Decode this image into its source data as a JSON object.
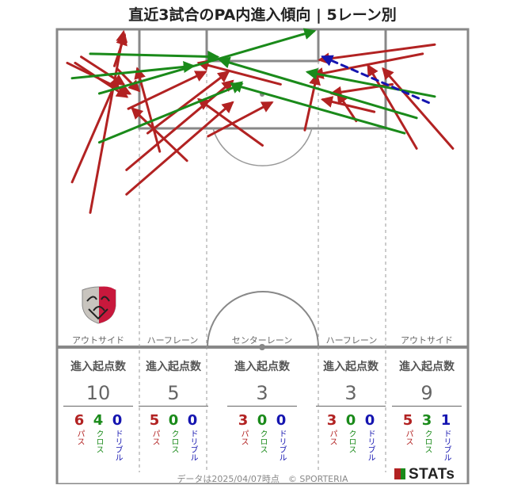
{
  "title": "直近3試合のPA内進入傾向 | 5レーン別",
  "footer": "データは2025/04/07時点　© SPORTERIA",
  "brand": "STATs",
  "colors": {
    "pass": "#b22222",
    "cross": "#1a8a1a",
    "dribble": "#1515b0",
    "line": "#888888"
  },
  "lanes": [
    {
      "name": "アウトサイド",
      "header": "進入起点数",
      "total": "10",
      "pass": "6",
      "cross": "4",
      "dribble": "0"
    },
    {
      "name": "ハーフレーン",
      "header": "進入起点数",
      "total": "5",
      "pass": "5",
      "cross": "0",
      "dribble": "0"
    },
    {
      "name": "センターレーン",
      "header": "進入起点数",
      "total": "3",
      "pass": "3",
      "cross": "0",
      "dribble": "0"
    },
    {
      "name": "ハーフレーン",
      "header": "進入起点数",
      "total": "3",
      "pass": "3",
      "cross": "0",
      "dribble": "0"
    },
    {
      "name": "アウトサイド",
      "header": "進入起点数",
      "total": "9",
      "pass": "5",
      "cross": "3",
      "dribble": "1"
    }
  ],
  "labels": {
    "pass": "パス",
    "cross": "クロス",
    "dribble": "ドリブル"
  },
  "club_logo": "kashima-antlers-crest",
  "chart_data": {
    "type": "scatter",
    "title": "直近3試合のPA内進入傾向 | 5レーン別",
    "coordinate_system": "pitch half, x 0-68 left-to-right, y 0-52 from goal line",
    "entries": [
      {
        "kind": "pass",
        "from": [
          5.5,
          30
        ],
        "to": [
          11,
          0.5
        ]
      },
      {
        "kind": "pass",
        "from": [
          2.5,
          25
        ],
        "to": [
          10,
          8
        ]
      },
      {
        "kind": "pass",
        "from": [
          3,
          5.5
        ],
        "to": [
          11.5,
          11
        ]
      },
      {
        "kind": "pass",
        "from": [
          1.7,
          5.5
        ],
        "to": [
          12,
          10.5
        ]
      },
      {
        "kind": "pass",
        "from": [
          4,
          4.5
        ],
        "to": [
          11,
          9
        ]
      },
      {
        "kind": "pass",
        "from": [
          9.5,
          6
        ],
        "to": [
          11.2,
          1
        ]
      },
      {
        "kind": "pass",
        "from": [
          10,
          6.5
        ],
        "to": [
          13.5,
          10
        ]
      },
      {
        "kind": "pass",
        "from": [
          17,
          20
        ],
        "to": [
          13.3,
          6.5
        ]
      },
      {
        "kind": "pass",
        "from": [
          21.5,
          21.5
        ],
        "to": [
          12.5,
          13
        ]
      },
      {
        "kind": "pass",
        "from": [
          15,
          17
        ],
        "to": [
          28.3,
          7
        ]
      },
      {
        "kind": "pass",
        "from": [
          11.5,
          23
        ],
        "to": [
          29,
          8.5
        ]
      },
      {
        "kind": "pass",
        "from": [
          11.8,
          13
        ],
        "to": [
          24.5,
          7
        ]
      },
      {
        "kind": "pass",
        "from": [
          11.5,
          27
        ],
        "to": [
          29,
          12
        ]
      },
      {
        "kind": "pass",
        "from": [
          25,
          17.5
        ],
        "to": [
          35.5,
          12
        ]
      },
      {
        "kind": "pass",
        "from": [
          34,
          19
        ],
        "to": [
          23.5,
          11.5
        ]
      },
      {
        "kind": "pass",
        "from": [
          37,
          9
        ],
        "to": [
          23.5,
          5.5
        ]
      },
      {
        "kind": "pass",
        "from": [
          41,
          16.5
        ],
        "to": [
          43,
          7.5
        ]
      },
      {
        "kind": "pass",
        "from": [
          49.5,
          15
        ],
        "to": [
          46.5,
          10.5
        ]
      },
      {
        "kind": "pass",
        "from": [
          62.5,
          2.5
        ],
        "to": [
          43.5,
          5
        ]
      },
      {
        "kind": "pass",
        "from": [
          60.5,
          4
        ],
        "to": [
          42.5,
          7.5
        ]
      },
      {
        "kind": "pass",
        "from": [
          59.5,
          19.5
        ],
        "to": [
          51.5,
          6
        ]
      },
      {
        "kind": "pass",
        "from": [
          65.5,
          19.5
        ],
        "to": [
          54,
          6.5
        ]
      },
      {
        "kind": "pass",
        "from": [
          55.5,
          9
        ],
        "to": [
          45.5,
          10.5
        ]
      },
      {
        "kind": "pass",
        "from": [
          52.5,
          13.5
        ],
        "to": [
          44,
          11.5
        ]
      },
      {
        "kind": "cross",
        "from": [
          5.5,
          4
        ],
        "to": [
          26.5,
          4.5
        ]
      },
      {
        "kind": "cross",
        "from": [
          2.5,
          8
        ],
        "to": [
          22.5,
          6
        ]
      },
      {
        "kind": "cross",
        "from": [
          7,
          10.5
        ],
        "to": [
          42.5,
          0.3
        ]
      },
      {
        "kind": "cross",
        "from": [
          7,
          18.5
        ],
        "to": [
          30.5,
          9
        ]
      },
      {
        "kind": "cross",
        "from": [
          59.5,
          14.5
        ],
        "to": [
          27,
          5
        ]
      },
      {
        "kind": "cross",
        "from": [
          62.5,
          11
        ],
        "to": [
          41.5,
          7
        ]
      },
      {
        "kind": "cross",
        "from": [
          57.5,
          17
        ],
        "to": [
          29,
          9
        ]
      },
      {
        "kind": "dribble",
        "from": [
          61.5,
          12
        ],
        "to": [
          44,
          4.5
        ]
      }
    ],
    "legend": [
      "パス",
      "クロス",
      "ドリブル"
    ]
  }
}
